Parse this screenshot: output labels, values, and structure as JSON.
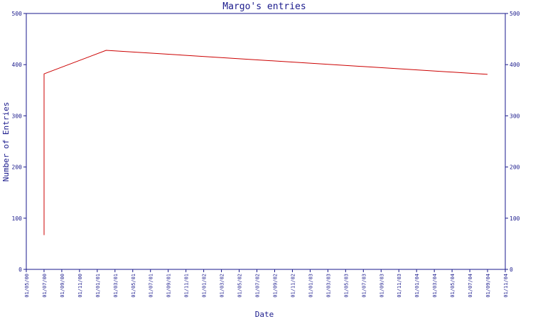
{
  "chart_data": {
    "type": "line",
    "title": "Margo's entries",
    "xlabel": "Date",
    "ylabel": "Number of Entries",
    "ylim": [
      0,
      500
    ],
    "yticks": [
      "0",
      "100",
      "200",
      "300",
      "400",
      "500"
    ],
    "xticks": [
      "01/05/00",
      "01/07/00",
      "01/09/00",
      "01/11/00",
      "01/01/01",
      "01/03/01",
      "01/05/01",
      "01/07/01",
      "01/09/01",
      "01/11/01",
      "01/01/02",
      "01/03/02",
      "01/05/02",
      "01/07/02",
      "01/09/02",
      "01/11/02",
      "01/01/03",
      "01/03/03",
      "01/05/03",
      "01/07/03",
      "01/09/03",
      "01/11/03",
      "01/01/04",
      "01/03/04",
      "01/05/04",
      "01/07/04",
      "01/09/04",
      "01/11/04"
    ],
    "grid": false,
    "colors": {
      "line": "#cc0000",
      "axis": "#1a1a8c"
    },
    "series": [
      {
        "points": [
          {
            "x": "01/07/00",
            "y": 67
          },
          {
            "x": "01/07/00",
            "y": 382
          },
          {
            "x": "01/02/01",
            "y": 428
          },
          {
            "x": "01/09/04",
            "y": 381
          }
        ]
      }
    ]
  }
}
